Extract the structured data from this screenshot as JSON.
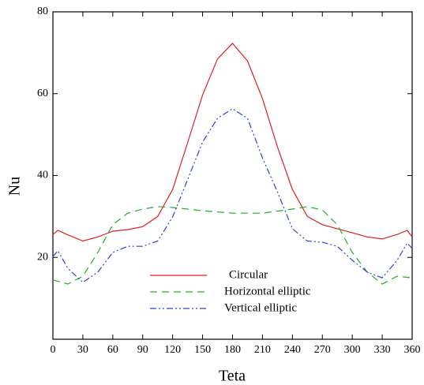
{
  "chart_data": {
    "type": "line",
    "x_label": "Teta",
    "y_label": "Nu",
    "xlim": [
      0,
      360
    ],
    "xticks": [
      0,
      30,
      60,
      90,
      120,
      150,
      180,
      210,
      240,
      270,
      300,
      330,
      360
    ],
    "ylim": [
      0,
      80
    ],
    "yticks": [
      20,
      40,
      60,
      80
    ],
    "series": [
      {
        "name": "Circular",
        "color": "#e02020",
        "dash": "",
        "x": [
          0,
          5,
          15,
          30,
          45,
          60,
          75,
          90,
          105,
          120,
          135,
          150,
          165,
          180,
          195,
          210,
          225,
          240,
          255,
          270,
          285,
          300,
          315,
          330,
          345,
          355,
          360
        ],
        "values": [
          25.6,
          26.6,
          25.5,
          24,
          25,
          26.4,
          26.8,
          27.5,
          30,
          36.6,
          48,
          59.7,
          68.5,
          72.3,
          68,
          58.8,
          47,
          36.6,
          30,
          28,
          27,
          26,
          25,
          24.5,
          25.6,
          26.6,
          25
        ]
      },
      {
        "name": "Horizontal elliptic",
        "color": "#20b020",
        "dash": "9,6",
        "x": [
          0,
          15,
          30,
          45,
          60,
          75,
          90,
          105,
          120,
          150,
          180,
          210,
          240,
          255,
          270,
          285,
          300,
          315,
          330,
          345,
          360
        ],
        "values": [
          14.5,
          13.5,
          15.4,
          21.2,
          28,
          30.8,
          31.8,
          32.4,
          32.2,
          31.4,
          30.8,
          30.8,
          31.8,
          32.4,
          31.6,
          28,
          21.2,
          16.4,
          13.5,
          15.4,
          15
        ]
      },
      {
        "name": "Vertical elliptic",
        "color": "#3040e0",
        "dash": "8,3,2,3,2,3",
        "x": [
          0,
          5,
          15,
          30,
          45,
          60,
          75,
          90,
          105,
          120,
          135,
          150,
          165,
          180,
          195,
          210,
          225,
          240,
          255,
          270,
          285,
          300,
          315,
          330,
          345,
          355,
          360
        ],
        "values": [
          20.2,
          21.6,
          17.3,
          13.9,
          16.4,
          21.2,
          22.7,
          22.7,
          24,
          29.9,
          39,
          48.2,
          54,
          56.3,
          54,
          44.3,
          36,
          27,
          24,
          23.7,
          22.7,
          19.3,
          16.4,
          15,
          19.3,
          23.5,
          22.2
        ]
      }
    ]
  }
}
